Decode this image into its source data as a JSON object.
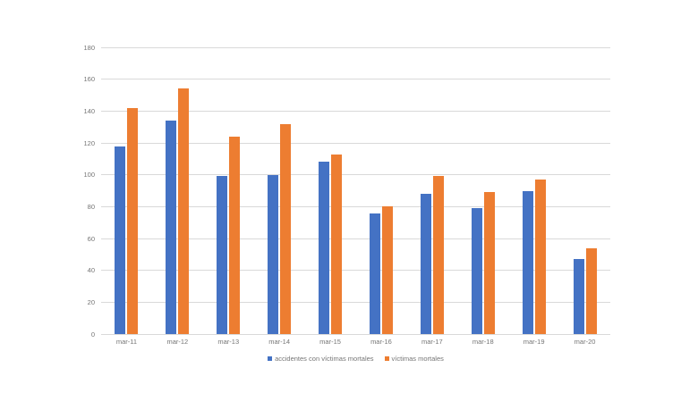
{
  "chart_data": {
    "type": "bar",
    "title": "",
    "xlabel": "",
    "ylabel": "",
    "categories": [
      "mar-11",
      "mar-12",
      "mar-13",
      "mar-14",
      "mar-15",
      "mar-16",
      "mar-17",
      "mar-18",
      "mar-19",
      "mar-20"
    ],
    "series": [
      {
        "name": "accidentes con víctimas mortales",
        "color": "#4472C4",
        "values": [
          118,
          134,
          99,
          100,
          108,
          76,
          88,
          79,
          90,
          47
        ]
      },
      {
        "name": "víctimas mortales",
        "color": "#ED7D31",
        "values": [
          142,
          154,
          124,
          132,
          113,
          80,
          99,
          89,
          97,
          54
        ]
      }
    ],
    "ylim": [
      0,
      180
    ],
    "yticks": [
      0,
      20,
      40,
      60,
      80,
      100,
      120,
      140,
      160,
      180
    ],
    "grid": "horizontal",
    "gridline_color": "#D9D9D9",
    "axis_text_color": "#757575",
    "legend_position": "bottom",
    "background_color": "#FFFFFF"
  }
}
